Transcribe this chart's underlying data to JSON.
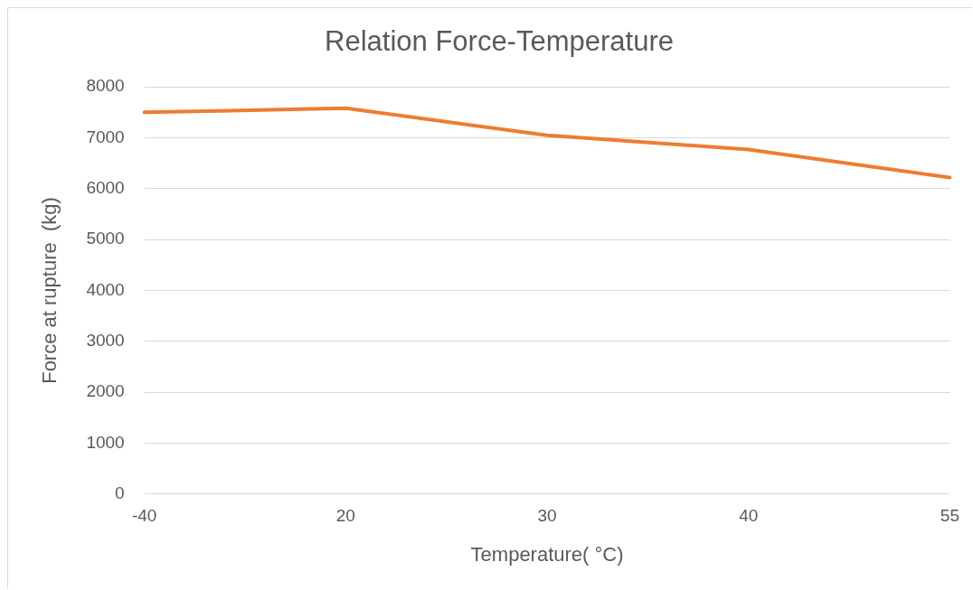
{
  "chart_data": {
    "type": "line",
    "title": "Relation Force-Temperature",
    "xlabel": "Temperature( °C)",
    "ylabel": "Force at rupture  (kg)",
    "categories": [
      "-40",
      "20",
      "30",
      "40",
      "55"
    ],
    "series": [
      {
        "color": "#ed7d31",
        "values": [
          7500,
          7580,
          7050,
          6770,
          6220
        ]
      }
    ],
    "ylim": [
      0,
      8000
    ],
    "yticks": [
      0,
      1000,
      2000,
      3000,
      4000,
      5000,
      6000,
      7000,
      8000
    ],
    "grid": "y",
    "legend": false,
    "marker": "none",
    "line_style": "solid"
  }
}
